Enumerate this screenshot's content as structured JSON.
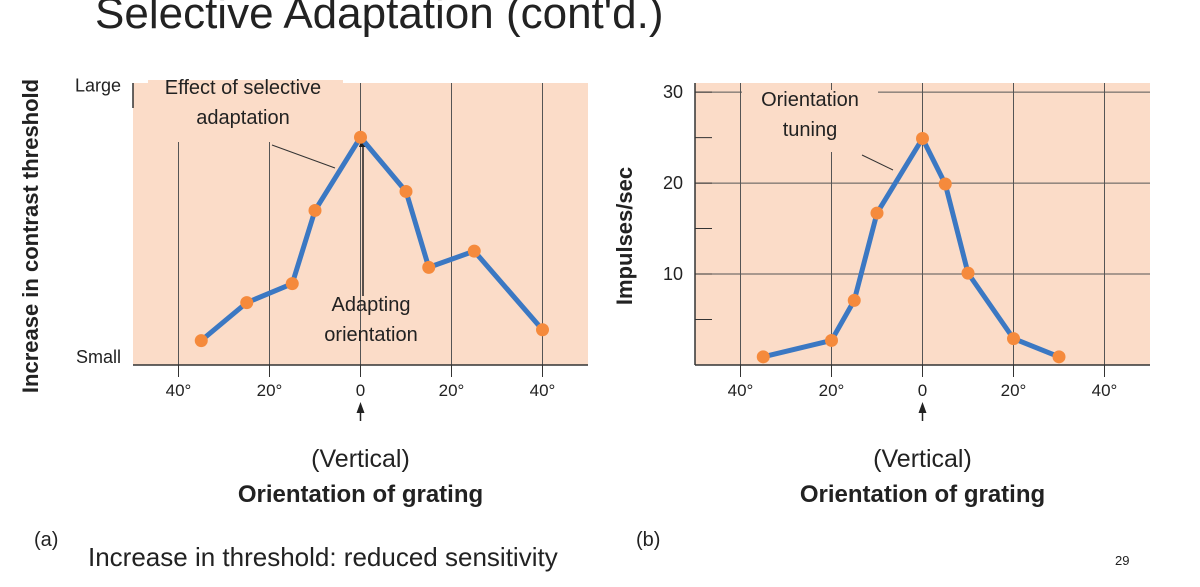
{
  "title": "Selective Adaptation (cont'd.)",
  "caption": "Increase in threshold: reduced sensitivity",
  "page_number": "29",
  "chart_data": [
    {
      "type": "line",
      "panel_label": "(a)",
      "xlabel": "Orientation of grating",
      "xsublabel": "(Vertical)",
      "ylabel": "Increase in contrast threshold",
      "x": [
        -35,
        -25,
        -15,
        -10,
        0,
        10,
        15,
        25,
        40
      ],
      "values": [
        0.6,
        2.0,
        2.7,
        5.4,
        8.1,
        6.1,
        3.3,
        3.9,
        1.0
      ],
      "color": "#3b78c3",
      "marker_color": "#f58a3c",
      "background": "#fbdcc8",
      "xlim": [
        -50,
        50
      ],
      "ylim": [
        -0.3,
        10.1
      ],
      "xticks": [
        {
          "value": -40,
          "label": "40°"
        },
        {
          "value": -20,
          "label": "20°"
        },
        0,
        {
          "value": 20,
          "label": "20°"
        },
        {
          "value": 40,
          "label": "40°"
        }
      ],
      "yticks": [
        {
          "value": 10,
          "label": "Large"
        },
        {
          "value": 0,
          "label": "Small"
        }
      ],
      "grid": [
        "x"
      ],
      "annotations": [
        {
          "text": [
            "Effect of selective",
            "adaptation"
          ]
        },
        {
          "text": [
            "Adapting",
            "orientation"
          ]
        }
      ]
    },
    {
      "type": "line",
      "panel_label": "(b)",
      "xlabel": "Orientation of grating",
      "xsublabel": "(Vertical)",
      "ylabel": "Impulses/sec",
      "x": [
        -35,
        -20,
        -15,
        -10,
        0,
        5,
        10,
        20,
        30
      ],
      "values": [
        0.9,
        2.7,
        7.1,
        16.7,
        24.9,
        19.9,
        10.1,
        2.9,
        0.9
      ],
      "color": "#3b78c3",
      "marker_color": "#f58a3c",
      "background": "#fbdcc8",
      "xlim": [
        -50,
        50
      ],
      "ylim": [
        0,
        31
      ],
      "xticks": [
        {
          "value": -40,
          "label": "40°"
        },
        {
          "value": -20,
          "label": "20°"
        },
        0,
        {
          "value": 20,
          "label": "20°"
        },
        {
          "value": 40,
          "label": "40°"
        }
      ],
      "yticks": [
        10,
        20,
        30
      ],
      "yminorticks": [
        5,
        15,
        25
      ],
      "grid": [
        "x",
        "y"
      ],
      "annotations": [
        {
          "text": [
            "Orientation",
            "tuning"
          ]
        }
      ]
    }
  ]
}
